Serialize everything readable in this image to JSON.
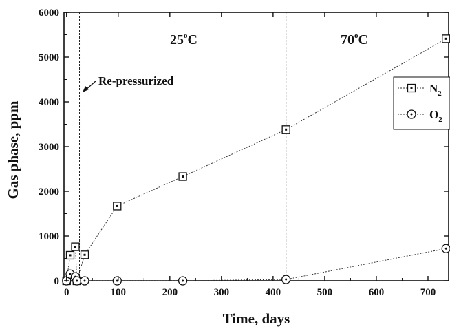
{
  "chart_data": {
    "type": "scatter",
    "xlabel": "Time, days",
    "ylabel": "Gas phase, ppm",
    "xlim": [
      -5,
      740
    ],
    "ylim": [
      0,
      6000
    ],
    "xticks": [
      0,
      100,
      200,
      300,
      400,
      500,
      600,
      700
    ],
    "yticks": [
      0,
      1000,
      2000,
      3000,
      4000,
      5000,
      6000
    ],
    "grid": false,
    "legend_position": "right",
    "series": [
      {
        "name": "N",
        "subscript": "2",
        "marker": "square",
        "line": "dotted",
        "x": [
          0,
          7,
          17,
          20,
          35,
          98,
          225,
          425,
          735
        ],
        "y": [
          0,
          570,
          760,
          0,
          580,
          1670,
          2330,
          3380,
          5410
        ]
      },
      {
        "name": "O",
        "subscript": "2",
        "marker": "circle",
        "line": "dotted",
        "x": [
          0,
          7,
          17,
          20,
          35,
          98,
          225,
          425,
          735
        ],
        "y": [
          0,
          150,
          90,
          0,
          0,
          0,
          0,
          30,
          720
        ]
      }
    ],
    "vlines": [
      25,
      425
    ],
    "annotations": {
      "repressurized": "Re-pressurized",
      "region1": {
        "num": "25",
        "deg": "o",
        "unit": "C"
      },
      "region2": {
        "num": "70",
        "deg": "o",
        "unit": "C"
      }
    }
  }
}
